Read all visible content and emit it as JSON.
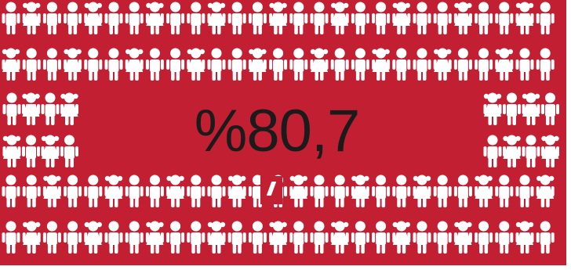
{
  "statistic": {
    "value_text": "%80,7"
  },
  "colors": {
    "background": "#c31f33",
    "figure": "#ffffff",
    "text": "#1b1b1b"
  },
  "figure_icon": "child-icon"
}
